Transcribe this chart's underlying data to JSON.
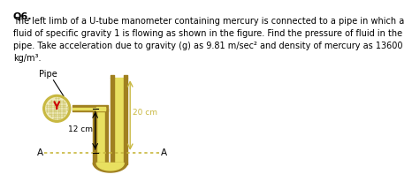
{
  "bg_color": "#ffffff",
  "title_text": "Q6.",
  "body_text": "The left limb of a U-tube manometer containing mercury is connected to a pipe in which a\nfluid of specific gravity 1 is flowing as shown in the figure. Find the pressure of fluid in the\npipe. Take acceleration due to gravity (g) as 9.81 m/sec² and density of mercury as 13600\nkg/m³.",
  "pipe_label": "Pipe",
  "dim1_label": "12 cm",
  "dim2_label": "20 cm",
  "aa_label": "A",
  "tube_wall_color": "#a08020",
  "tube_inner_color": "#e8e060",
  "pipe_outer_color": "#c8b840",
  "pipe_inner_color": "#f0ecc0",
  "pipe_dot_color": "#d0c870",
  "dotted_color": "#c8b840",
  "text_color": "#000000",
  "dim_color": "#c8b840",
  "red_arrow_color": "#cc0000"
}
